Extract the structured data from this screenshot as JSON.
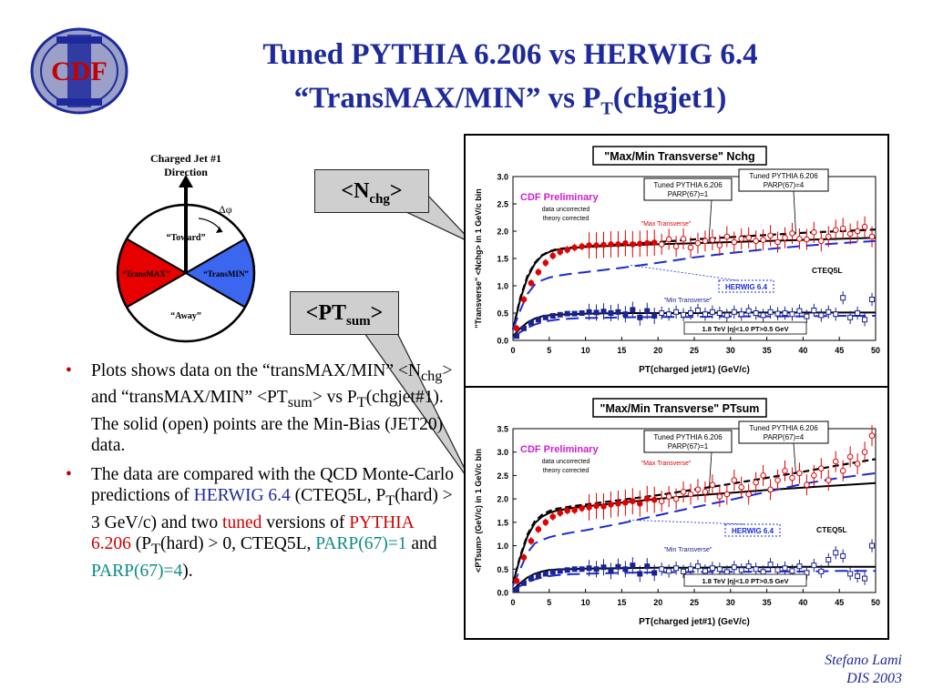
{
  "header": {
    "logo_text": "CDF",
    "title_line1": "Tuned PYTHIA 6.206 vs HERWIG 6.4",
    "title_line2_pre": "“TransMAX/MIN” vs P",
    "title_line2_sub": "T",
    "title_line2_post": "(chgjet1)"
  },
  "diagram": {
    "jet_label_line1": "Charged Jet #1",
    "jet_label_line2": "Direction",
    "dphi": "Δφ",
    "toward": "“Toward”",
    "away": "“Away”",
    "transmax": "“TransMAX”",
    "transmin": "“TransMIN”",
    "colors": {
      "transmax": "#e60000",
      "transmin": "#3a66f0",
      "outline": "#000000"
    }
  },
  "callouts": {
    "nchg_pre": "<N",
    "nchg_sub": "chg",
    "nchg_post": ">",
    "ptsum_pre": "<PT",
    "ptsum_sub": "sum",
    "ptsum_post": ">"
  },
  "bullets": {
    "b1": {
      "t1": "Plots shows data on the “transMAX/MIN” <N",
      "s1": "chg",
      "t2": "> and “transMAX/MIN” <PT",
      "s2": "sum",
      "t3": "> vs P",
      "s3": "T",
      "t4": "(chgjet#1). The solid (open) points are the Min-Bias (JET20) data."
    },
    "b2": {
      "t1": "The data are compared with the QCD Monte-Carlo predictions of ",
      "herwig": "HERWIG 6.4",
      "t2": " (CTEQ5L, P",
      "s1": "T",
      "t3": "(hard) > 3 GeV/c) and two ",
      "tuned": "tuned",
      "t4": " versions of ",
      "pythia": "PYTHIA 6.206",
      "t5": "  (P",
      "s2": "T",
      "t6": "(hard) > 0, CTEQ5L, ",
      "parp1": "PARP(67)=1",
      "t7": " and ",
      "parp4": "PARP(67)=4",
      "t8": ")."
    }
  },
  "footer": {
    "author": "Stefano Lami",
    "conf": "DIS 2003"
  },
  "chart_data": [
    {
      "type": "line",
      "title": "\"Max/Min Transverse\" Nchg",
      "xlabel": "PT(charged jet#1)  (GeV/c)",
      "ylabel": "\"Transverse\" <Nchg> in 1 GeV/c bin",
      "xlim": [
        0,
        50
      ],
      "ylim": [
        0,
        3
      ],
      "xticks": [
        "0",
        "5",
        "10",
        "15",
        "20",
        "25",
        "30",
        "35",
        "40",
        "45",
        "50"
      ],
      "yticks": [
        "0.0",
        "0.5",
        "1.0",
        "1.5",
        "2.0",
        "2.5",
        "3.0"
      ],
      "annotations": {
        "prelim": "CDF Preliminary",
        "note1": "data uncorrected",
        "note2": "theory corrected",
        "tuned1": "Tuned PYTHIA 6.206 PARP(67)=1",
        "tuned4": "Tuned PYTHIA 6.206 PARP(67)=4",
        "maxlabel": "\"Max Transverse\"",
        "minlabel": "\"Min Transverse\"",
        "herwig": "HERWIG 6.4",
        "cteq": "CTEQ5L",
        "energy": "1.8 TeV |η|<1.0 PT>0.5 GeV"
      },
      "series": [
        {
          "name": "\"Max Transverse\"",
          "marker": "filled-diamond",
          "x": [
            0.5,
            1.5,
            2.5,
            3.5,
            4.5,
            5.5,
            6.5,
            7.5,
            8.5,
            9.5,
            10.5,
            11.5,
            12.5,
            13.5,
            14.5,
            15.5,
            16.5,
            17.5,
            18.5,
            19.5
          ],
          "y": [
            0.22,
            0.75,
            1.05,
            1.25,
            1.42,
            1.55,
            1.62,
            1.66,
            1.7,
            1.72,
            1.74,
            1.74,
            1.75,
            1.76,
            1.76,
            1.78,
            1.76,
            1.77,
            1.78,
            1.79
          ]
        },
        {
          "name": "\"Max Transverse\"",
          "marker": "open-diamond",
          "x": [
            20.5,
            21.5,
            22.5,
            23.5,
            24.5,
            25.5,
            26.5,
            27.5,
            28.5,
            29.5,
            30.5,
            31.5,
            32.5,
            33.5,
            34.5,
            35.5,
            36.5,
            37.5,
            38.5,
            39.5,
            40.5,
            41.5,
            42.5,
            43.5,
            44.5,
            45.5,
            46.5,
            47.5,
            48.5,
            49.5
          ],
          "y": [
            1.76,
            1.85,
            1.72,
            1.86,
            1.7,
            1.78,
            1.82,
            1.84,
            1.74,
            1.9,
            1.8,
            1.86,
            1.88,
            1.82,
            1.84,
            1.92,
            1.8,
            1.88,
            1.96,
            1.86,
            1.85,
            1.98,
            1.82,
            1.9,
            2.02,
            2.05,
            1.95,
            2.0,
            2.08,
            1.9
          ]
        },
        {
          "name": "\"Min Transverse\"",
          "marker": "filled-square",
          "x": [
            0.5,
            1.5,
            2.5,
            3.5,
            4.5,
            5.5,
            6.5,
            7.5,
            8.5,
            9.5,
            10.5,
            11.5,
            12.5,
            13.5,
            14.5,
            15.5,
            16.5,
            17.5,
            18.5,
            19.5
          ],
          "y": [
            0.08,
            0.22,
            0.32,
            0.38,
            0.42,
            0.45,
            0.47,
            0.49,
            0.49,
            0.5,
            0.52,
            0.51,
            0.53,
            0.5,
            0.52,
            0.48,
            0.56,
            0.42,
            0.54,
            0.45
          ]
        },
        {
          "name": "\"Min Transverse\"",
          "marker": "open-square",
          "x": [
            20.5,
            21.5,
            22.5,
            23.5,
            24.5,
            25.5,
            26.5,
            27.5,
            28.5,
            29.5,
            30.5,
            31.5,
            32.5,
            33.5,
            34.5,
            35.5,
            36.5,
            37.5,
            38.5,
            39.5,
            40.5,
            41.5,
            42.5,
            43.5,
            44.5,
            45.5,
            46.5,
            47.5,
            48.5,
            49.5
          ],
          "y": [
            0.5,
            0.48,
            0.52,
            0.47,
            0.5,
            0.55,
            0.48,
            0.52,
            0.5,
            0.46,
            0.52,
            0.48,
            0.54,
            0.5,
            0.46,
            0.52,
            0.49,
            0.5,
            0.48,
            0.54,
            0.44,
            0.55,
            0.46,
            0.52,
            0.48,
            0.78,
            0.42,
            0.5,
            0.38,
            0.75
          ]
        },
        {
          "name": "Tuned PYTHIA 6.206 PARP(67)=1",
          "style": "solid",
          "x": [
            0,
            1,
            2,
            3,
            4,
            5,
            6,
            8,
            10,
            15,
            20,
            25,
            30,
            35,
            40,
            45,
            50
          ],
          "y": [
            0.2,
            0.75,
            1.15,
            1.4,
            1.55,
            1.62,
            1.66,
            1.69,
            1.71,
            1.74,
            1.76,
            1.78,
            1.8,
            1.82,
            1.84,
            1.86,
            1.88
          ]
        },
        {
          "name": "Tuned PYTHIA 6.206 PARP(67)=4",
          "style": "dashed",
          "x": [
            0,
            1,
            2,
            3,
            4,
            5,
            6,
            8,
            10,
            15,
            20,
            25,
            30,
            35,
            40,
            45,
            50
          ],
          "y": [
            0.2,
            0.78,
            1.18,
            1.42,
            1.56,
            1.63,
            1.67,
            1.7,
            1.72,
            1.76,
            1.8,
            1.85,
            1.89,
            1.93,
            1.97,
            2.0,
            2.03
          ]
        },
        {
          "name": "HERWIG 6.4",
          "style": "long-dashed",
          "x": [
            0,
            1,
            2,
            3,
            4,
            5,
            6,
            8,
            10,
            15,
            20,
            25,
            30,
            35,
            40,
            45,
            50
          ],
          "y": [
            0.2,
            0.55,
            0.85,
            1.02,
            1.1,
            1.15,
            1.18,
            1.22,
            1.25,
            1.33,
            1.42,
            1.52,
            1.6,
            1.67,
            1.73,
            1.78,
            1.82
          ]
        },
        {
          "name": "Min PYTHIA 6.206",
          "style": "solid",
          "x": [
            0,
            1,
            2,
            3,
            4,
            5,
            6,
            8,
            10,
            15,
            20,
            25,
            30,
            35,
            40,
            45,
            50
          ],
          "y": [
            0.08,
            0.22,
            0.33,
            0.4,
            0.44,
            0.46,
            0.47,
            0.48,
            0.49,
            0.5,
            0.5,
            0.5,
            0.51,
            0.51,
            0.51,
            0.51,
            0.51
          ]
        },
        {
          "name": "Min HERWIG 6.4",
          "style": "long-dashed",
          "x": [
            0,
            1,
            2,
            3,
            4,
            5,
            6,
            8,
            10,
            15,
            20,
            25,
            30,
            35,
            40,
            45,
            50
          ],
          "y": [
            0.05,
            0.15,
            0.23,
            0.29,
            0.33,
            0.36,
            0.38,
            0.4,
            0.41,
            0.42,
            0.43,
            0.43,
            0.44,
            0.44,
            0.44,
            0.45,
            0.45
          ]
        }
      ]
    },
    {
      "type": "line",
      "title": "\"Max/Min Transverse\" PTsum",
      "xlabel": "PT(charged jet#1)  (GeV/c)",
      "ylabel": "<PTsum> (GeV/c) in 1 GeV/c bin",
      "xlim": [
        0,
        50
      ],
      "ylim": [
        0,
        3.5
      ],
      "xticks": [
        "0",
        "5",
        "10",
        "15",
        "20",
        "25",
        "30",
        "35",
        "40",
        "45",
        "50"
      ],
      "yticks": [
        "0.0",
        "0.5",
        "1.0",
        "1.5",
        "2.0",
        "2.5",
        "3.0",
        "3.5"
      ],
      "annotations": {
        "prelim": "CDF Preliminary",
        "note1": "data uncorrected",
        "note2": "theory corrected",
        "tuned1": "Tuned PYTHIA 6.206 PARP(67)=1",
        "tuned4": "Tuned PYTHIA 6.206 PARP(67)=4",
        "maxlabel": "\"Max Transverse\"",
        "minlabel": "\"Min Transverse\"",
        "herwig": "HERWIG 6.4",
        "cteq": "CTEQ5L",
        "energy": "1.8 TeV |η|<1.0 PT>0.5 GeV"
      },
      "series": [
        {
          "name": "\"Max Transverse\"",
          "marker": "filled-diamond",
          "x": [
            0.5,
            1.5,
            2.5,
            3.5,
            4.5,
            5.5,
            6.5,
            7.5,
            8.5,
            9.5,
            10.5,
            11.5,
            12.5,
            13.5,
            14.5,
            15.5,
            16.5,
            17.5,
            18.5,
            19.5
          ],
          "y": [
            0.25,
            0.75,
            1.1,
            1.35,
            1.5,
            1.62,
            1.7,
            1.75,
            1.76,
            1.8,
            1.82,
            1.85,
            1.84,
            1.88,
            1.9,
            1.92,
            1.95,
            1.9,
            2.0,
            1.98
          ]
        },
        {
          "name": "\"Max Transverse\"",
          "marker": "open-diamond",
          "x": [
            20.5,
            21.5,
            22.5,
            23.5,
            24.5,
            25.5,
            26.5,
            27.5,
            28.5,
            29.5,
            30.5,
            31.5,
            32.5,
            33.5,
            34.5,
            35.5,
            36.5,
            37.5,
            38.5,
            39.5,
            40.5,
            41.5,
            42.5,
            43.5,
            44.5,
            45.5,
            46.5,
            47.5,
            48.5,
            49.5
          ],
          "y": [
            1.95,
            2.05,
            2.0,
            2.15,
            2.1,
            2.2,
            2.15,
            2.3,
            2.05,
            2.1,
            2.4,
            2.25,
            2.1,
            2.35,
            2.5,
            2.2,
            2.4,
            2.6,
            2.45,
            2.55,
            2.3,
            2.5,
            2.65,
            2.4,
            2.8,
            2.6,
            2.9,
            2.75,
            3.0,
            3.35
          ]
        },
        {
          "name": "\"Min Transverse\"",
          "marker": "filled-square",
          "x": [
            0.5,
            1.5,
            2.5,
            3.5,
            4.5,
            5.5,
            6.5,
            7.5,
            8.5,
            9.5,
            10.5,
            11.5,
            12.5,
            13.5,
            14.5,
            15.5,
            16.5,
            17.5,
            18.5,
            19.5
          ],
          "y": [
            0.06,
            0.2,
            0.3,
            0.36,
            0.4,
            0.44,
            0.46,
            0.48,
            0.5,
            0.5,
            0.52,
            0.5,
            0.54,
            0.46,
            0.55,
            0.5,
            0.58,
            0.4,
            0.56,
            0.42
          ]
        },
        {
          "name": "\"Min Transverse\"",
          "marker": "open-square",
          "x": [
            20.5,
            21.5,
            22.5,
            23.5,
            24.5,
            25.5,
            26.5,
            27.5,
            28.5,
            29.5,
            30.5,
            31.5,
            32.5,
            33.5,
            34.5,
            35.5,
            36.5,
            37.5,
            38.5,
            39.5,
            40.5,
            41.5,
            42.5,
            43.5,
            44.5,
            45.5,
            46.5,
            47.5,
            48.5,
            49.5
          ],
          "y": [
            0.5,
            0.46,
            0.52,
            0.45,
            0.5,
            0.56,
            0.46,
            0.52,
            0.5,
            0.44,
            0.54,
            0.48,
            0.56,
            0.5,
            0.44,
            0.6,
            0.48,
            0.52,
            0.46,
            0.56,
            0.42,
            0.58,
            0.45,
            0.7,
            0.85,
            0.78,
            0.4,
            0.35,
            0.3,
            1.0
          ]
        },
        {
          "name": "Tuned PYTHIA 6.206 PARP(67)=1",
          "style": "solid",
          "x": [
            0,
            1,
            2,
            3,
            4,
            5,
            6,
            8,
            10,
            15,
            20,
            25,
            30,
            35,
            40,
            45,
            50
          ],
          "y": [
            0.2,
            0.75,
            1.2,
            1.48,
            1.62,
            1.7,
            1.75,
            1.8,
            1.84,
            1.92,
            2.0,
            2.07,
            2.13,
            2.19,
            2.24,
            2.29,
            2.34
          ]
        },
        {
          "name": "Tuned PYTHIA 6.206 PARP(67)=4",
          "style": "dashed",
          "x": [
            0,
            1,
            2,
            3,
            4,
            5,
            6,
            8,
            10,
            15,
            20,
            25,
            30,
            35,
            40,
            45,
            50
          ],
          "y": [
            0.2,
            0.78,
            1.24,
            1.52,
            1.66,
            1.74,
            1.79,
            1.84,
            1.88,
            1.98,
            2.08,
            2.2,
            2.32,
            2.45,
            2.58,
            2.72,
            2.85
          ]
        },
        {
          "name": "HERWIG 6.4",
          "style": "long-dashed",
          "x": [
            0,
            1,
            2,
            3,
            4,
            5,
            6,
            8,
            10,
            15,
            20,
            25,
            30,
            35,
            40,
            45,
            50
          ],
          "y": [
            0.15,
            0.5,
            0.85,
            1.05,
            1.12,
            1.18,
            1.22,
            1.28,
            1.33,
            1.48,
            1.65,
            1.82,
            1.98,
            2.15,
            2.32,
            2.45,
            2.55
          ]
        },
        {
          "name": "Min PYTHIA 6.206",
          "style": "solid",
          "x": [
            0,
            1,
            2,
            3,
            4,
            5,
            6,
            8,
            10,
            15,
            20,
            25,
            30,
            35,
            40,
            45,
            50
          ],
          "y": [
            0.06,
            0.2,
            0.32,
            0.4,
            0.45,
            0.48,
            0.49,
            0.5,
            0.51,
            0.52,
            0.53,
            0.53,
            0.54,
            0.54,
            0.55,
            0.55,
            0.55
          ]
        },
        {
          "name": "Min HERWIG 6.4",
          "style": "long-dashed",
          "x": [
            0,
            1,
            2,
            3,
            4,
            5,
            6,
            8,
            10,
            15,
            20,
            25,
            30,
            35,
            40,
            45,
            50
          ],
          "y": [
            0.04,
            0.14,
            0.22,
            0.28,
            0.32,
            0.35,
            0.37,
            0.39,
            0.4,
            0.42,
            0.43,
            0.44,
            0.44,
            0.45,
            0.45,
            0.46,
            0.46
          ]
        }
      ]
    }
  ]
}
